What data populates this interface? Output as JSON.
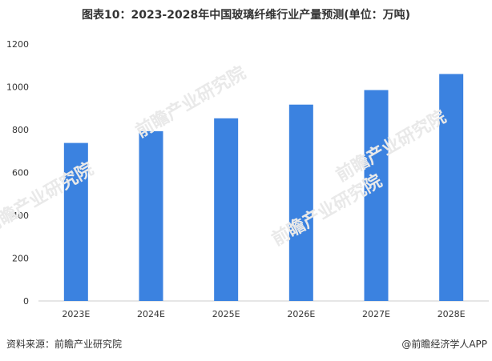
{
  "title": "图表10：2023-2028年中国玻璃纤维行业产量预测(单位：万吨)",
  "source": "资料来源：前瞻产业研究院",
  "credit": "@前瞻经济学人APP",
  "watermark": "前瞻产业研究院",
  "colors": {
    "bar": "#3b82e0",
    "axis": "#cccccc",
    "text": "#333333"
  },
  "chart_data": {
    "type": "bar",
    "title": "图表10：2023-2028年中国玻璃纤维行业产量预测(单位：万吨)",
    "categories": [
      "2023E",
      "2024E",
      "2025E",
      "2026E",
      "2027E",
      "2028E"
    ],
    "values": [
      738,
      793,
      853,
      917,
      985,
      1060
    ],
    "xlabel": "",
    "ylabel": "",
    "ylim": [
      0,
      1200
    ],
    "yticks": [
      0,
      200,
      400,
      600,
      800,
      1000,
      1200
    ],
    "grid": false,
    "legend": "none"
  }
}
